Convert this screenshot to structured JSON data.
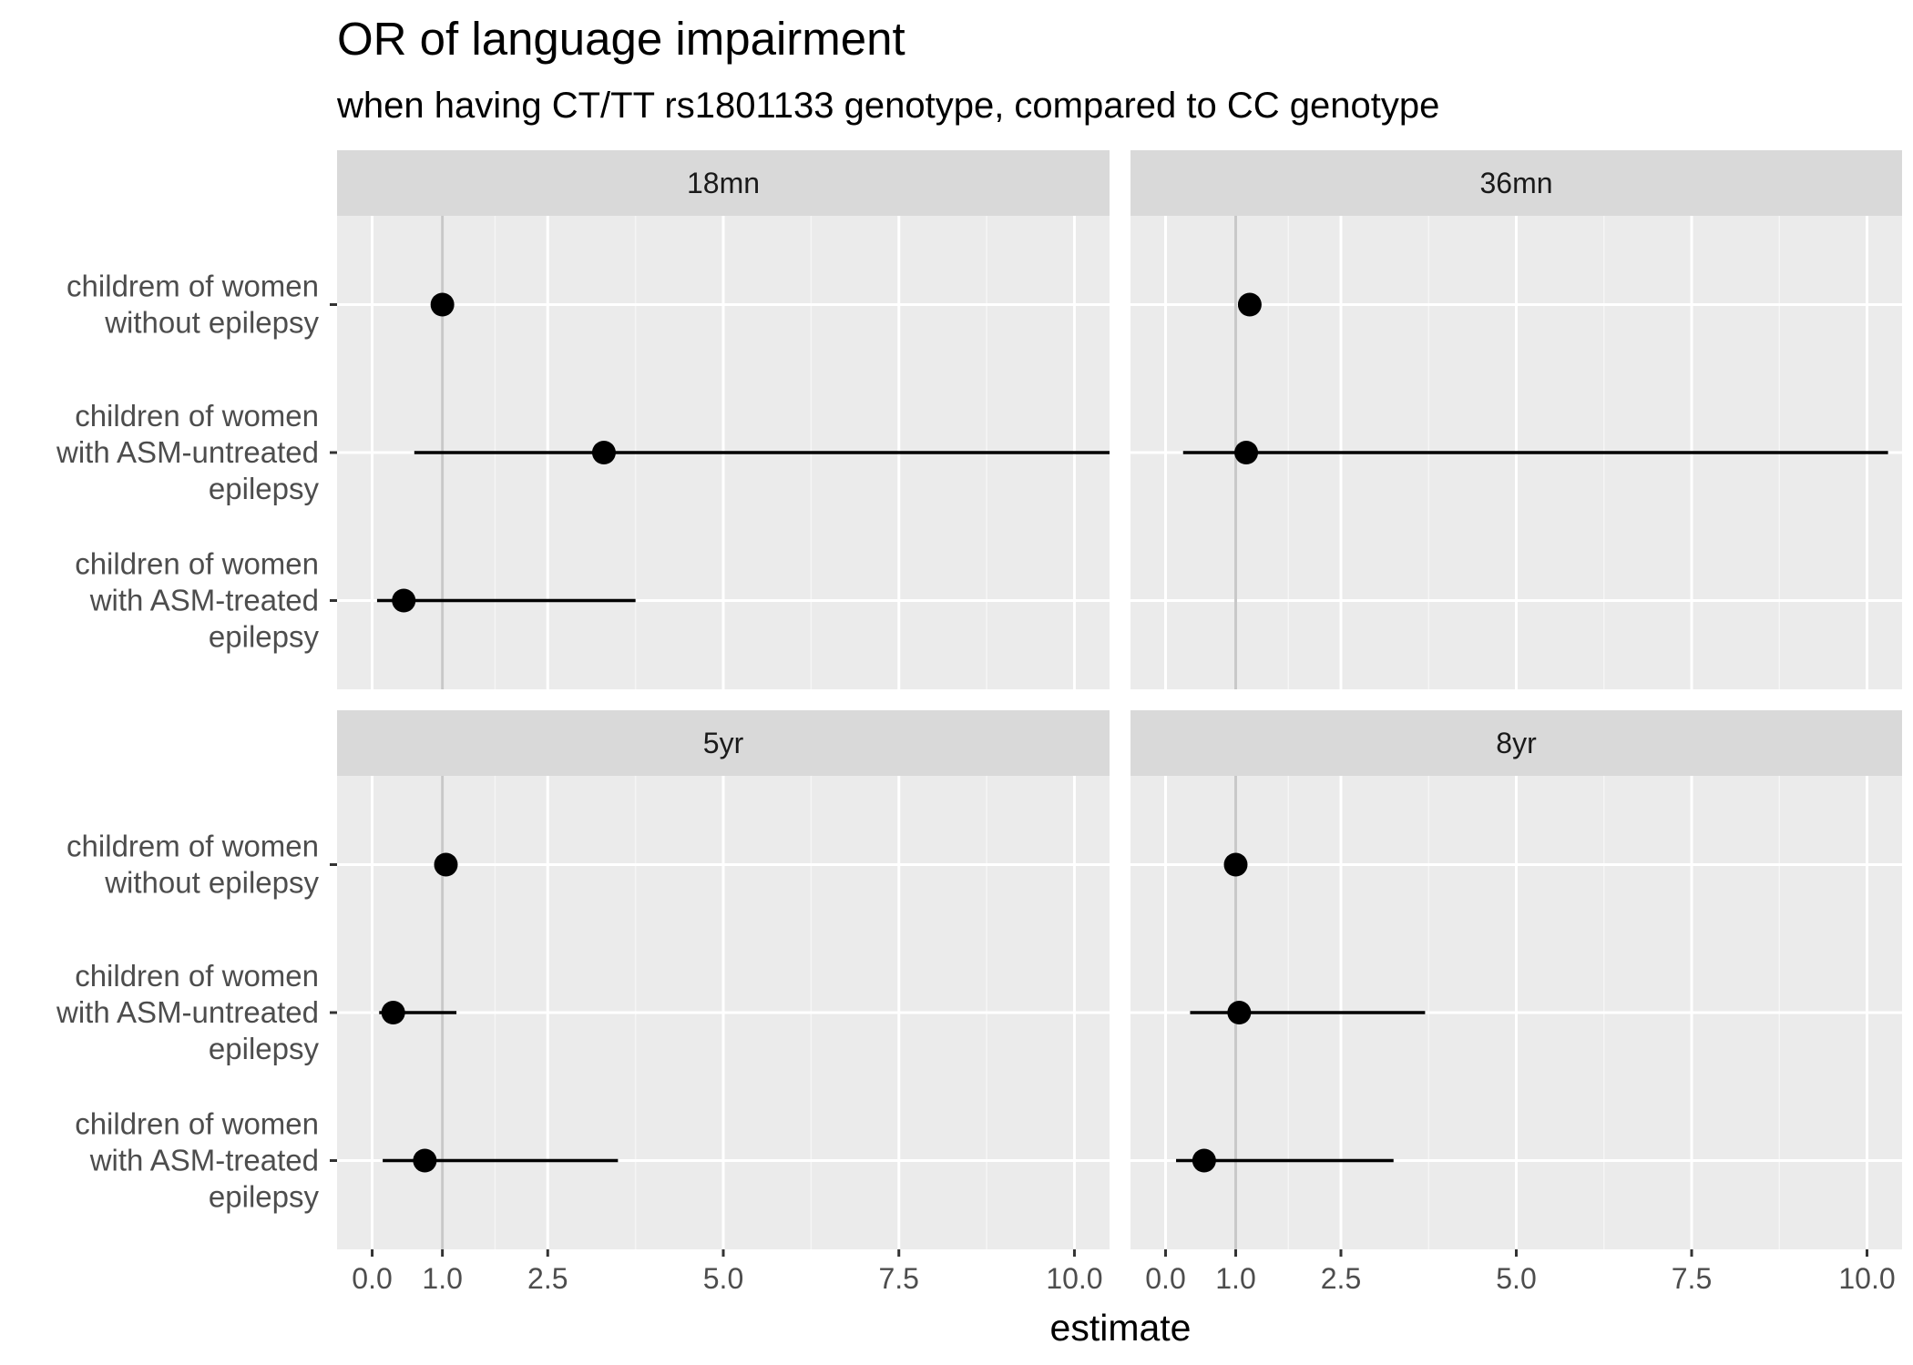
{
  "chart_data": {
    "type": "scatter",
    "title": "OR of language impairment",
    "subtitle": "when having CT/TT rs1801133 genotype, compared to CC genotype",
    "xlabel": "estimate",
    "ylabel": "",
    "xlim": [
      -0.5,
      10.5
    ],
    "x_ticks": [
      0.0,
      1.0,
      2.5,
      5.0,
      7.5,
      10.0
    ],
    "x_tick_labels": [
      "0.0",
      "1.0",
      "2.5",
      "5.0",
      "7.5",
      "10.0"
    ],
    "x_minor_ticks": [
      1.75,
      3.75,
      6.25,
      8.75
    ],
    "reference_line": 1.0,
    "grid": true,
    "categories": [
      [
        "childrem of women",
        "without epilepsy"
      ],
      [
        "children of women",
        "with ASM-untreated",
        "epilepsy"
      ],
      [
        "children of women",
        "with ASM-treated",
        "epilepsy"
      ]
    ],
    "facets": [
      {
        "label": "18mn",
        "points": [
          {
            "estimate": 1.0,
            "lower": null,
            "upper": null
          },
          {
            "estimate": 3.3,
            "lower": 0.6,
            "upper": 10.5
          },
          {
            "estimate": 0.45,
            "lower": 0.07,
            "upper": 3.75
          }
        ]
      },
      {
        "label": "36mn",
        "points": [
          {
            "estimate": 1.2,
            "lower": null,
            "upper": null
          },
          {
            "estimate": 1.15,
            "lower": 0.25,
            "upper": 10.3
          }
        ]
      },
      {
        "label": "5yr",
        "points": [
          {
            "estimate": 1.05,
            "lower": null,
            "upper": null
          },
          {
            "estimate": 0.3,
            "lower": 0.1,
            "upper": 1.2
          },
          {
            "estimate": 0.75,
            "lower": 0.15,
            "upper": 3.5
          }
        ]
      },
      {
        "label": "8yr",
        "points": [
          {
            "estimate": 1.0,
            "lower": null,
            "upper": null
          },
          {
            "estimate": 1.05,
            "lower": 0.35,
            "upper": 3.7
          },
          {
            "estimate": 0.55,
            "lower": 0.15,
            "upper": 3.25
          }
        ]
      }
    ]
  }
}
